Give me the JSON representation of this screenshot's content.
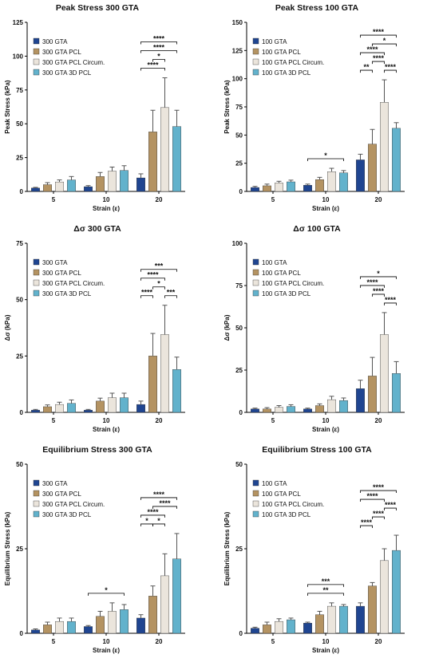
{
  "colors": {
    "c1": "#1f4591",
    "c2": "#b49362",
    "c3": "#ebe5dc",
    "c4": "#62b2cc"
  },
  "charts": [
    {
      "title": "Peak Stress 300 GTA",
      "ylabel": "Peak Stress (kPa)",
      "xlabel": "Strain (ε)",
      "categories": [
        "5",
        "10",
        "20"
      ],
      "ylim": [
        0,
        125
      ],
      "yticks": [
        "0",
        "25",
        "50",
        "75",
        "100",
        "125"
      ],
      "legend": [
        "300 GTA",
        "300 GTA PCL",
        "300 GTA PCL Circum.",
        "300 GTA 3D PCL"
      ],
      "series": [
        {
          "name": "300 GTA",
          "values": [
            2.5,
            3.5,
            10
          ],
          "errors": [
            0.5,
            0.8,
            3
          ]
        },
        {
          "name": "300 GTA PCL",
          "values": [
            5,
            11,
            44
          ],
          "errors": [
            1.5,
            3,
            16
          ]
        },
        {
          "name": "300 GTA PCL Circum.",
          "values": [
            7,
            15,
            62
          ],
          "errors": [
            1.5,
            3,
            22
          ]
        },
        {
          "name": "300 GTA 3D PCL",
          "values": [
            8.5,
            15.5,
            48
          ],
          "errors": [
            2.5,
            3.5,
            12
          ]
        }
      ],
      "annotations": [
        {
          "label": "****",
          "cat": 2,
          "from": 0,
          "to": 2,
          "level": 0
        },
        {
          "label": "*",
          "cat": 2,
          "from": 1,
          "to": 2,
          "level": 1
        },
        {
          "label": "****",
          "cat": 2,
          "from": 0,
          "to": 3,
          "level": 2
        },
        {
          "label": "****",
          "cat": 2,
          "from": 0,
          "to": 3,
          "level": 3
        }
      ]
    },
    {
      "title": "Peak Stress 100 GTA",
      "ylabel": "Peak Stress (kPa)",
      "xlabel": "Strain (ε)",
      "categories": [
        "5",
        "10",
        "20"
      ],
      "ylim": [
        0,
        150
      ],
      "yticks": [
        "0",
        "25",
        "50",
        "75",
        "100",
        "125",
        "150"
      ],
      "legend": [
        "100 GTA",
        "100 GTA PCL",
        "100 GTA PCL Circum.",
        "100 GTA 3D PCL"
      ],
      "series": [
        {
          "name": "100 GTA",
          "values": [
            3.5,
            5.5,
            28
          ],
          "errors": [
            1,
            1,
            5
          ]
        },
        {
          "name": "100 GTA PCL",
          "values": [
            5,
            10.5,
            42
          ],
          "errors": [
            1.5,
            2,
            13
          ]
        },
        {
          "name": "100 GTA PCL Circum.",
          "values": [
            7.5,
            17.5,
            79
          ],
          "errors": [
            1.5,
            3,
            20
          ]
        },
        {
          "name": "100 GTA 3D PCL",
          "values": [
            8.5,
            16.5,
            56
          ],
          "errors": [
            1.5,
            2,
            5
          ]
        }
      ],
      "annotations": [
        {
          "label": "**",
          "cat": 2,
          "from": 0,
          "to": 1,
          "level": 0
        },
        {
          "label": "****",
          "cat": 2,
          "from": 2,
          "to": 3,
          "level": 0
        },
        {
          "label": "****",
          "cat": 2,
          "from": 1,
          "to": 2,
          "level": 1
        },
        {
          "label": "****",
          "cat": 2,
          "from": 0,
          "to": 2,
          "level": 2
        },
        {
          "label": "*",
          "cat": 2,
          "from": 1,
          "to": 3,
          "level": 3
        },
        {
          "label": "****",
          "cat": 2,
          "from": 0,
          "to": 3,
          "level": 4
        },
        {
          "label": "*",
          "cat": 1,
          "from": 0,
          "to": 3,
          "level": 0
        }
      ]
    },
    {
      "title": "Δσ 300 GTA",
      "ylabel": "Δσ (kPa)",
      "xlabel": "Strain (ε)",
      "categories": [
        "5",
        "10",
        "20"
      ],
      "ylim": [
        0,
        75
      ],
      "yticks": [
        "0",
        "25",
        "50",
        "75"
      ],
      "legend": [
        "300 GTA",
        "300 GTA PCL",
        "300 GTA PCL Circum.",
        "300 GTA 3D PCL"
      ],
      "series": [
        {
          "name": "300 GTA",
          "values": [
            1,
            1,
            3.5
          ],
          "errors": [
            0.3,
            0.3,
            1.5
          ]
        },
        {
          "name": "300 GTA PCL",
          "values": [
            2.5,
            5,
            25
          ],
          "errors": [
            0.8,
            1.3,
            10
          ]
        },
        {
          "name": "300 GTA PCL Circum.",
          "values": [
            3.5,
            6.5,
            34.5
          ],
          "errors": [
            1,
            2,
            13
          ]
        },
        {
          "name": "300 GTA 3D PCL",
          "values": [
            4,
            6.5,
            19
          ],
          "errors": [
            1.5,
            2,
            5.5
          ]
        }
      ],
      "annotations": [
        {
          "label": "****",
          "cat": 2,
          "from": 0,
          "to": 1,
          "level": 0
        },
        {
          "label": "***",
          "cat": 2,
          "from": 2,
          "to": 3,
          "level": 0
        },
        {
          "label": "*",
          "cat": 2,
          "from": 1,
          "to": 2,
          "level": 1
        },
        {
          "label": "****",
          "cat": 2,
          "from": 0,
          "to": 2,
          "level": 2
        },
        {
          "label": "***",
          "cat": 2,
          "from": 0,
          "to": 3,
          "level": 3
        }
      ]
    },
    {
      "title": "Δσ 100 GTA",
      "ylabel": "Δσ (kPa)",
      "xlabel": "Strain (ε)",
      "categories": [
        "5",
        "10",
        "20"
      ],
      "ylim": [
        0,
        100
      ],
      "yticks": [
        "0",
        "25",
        "50",
        "75",
        "100"
      ],
      "legend": [
        "100 GTA",
        "100 GTA PCL",
        "100 GTA PCL Circum.",
        "100 GTA 3D PCL"
      ],
      "series": [
        {
          "name": "100 GTA",
          "values": [
            2,
            2,
            14
          ],
          "errors": [
            0.5,
            0.5,
            5
          ]
        },
        {
          "name": "100 GTA PCL",
          "values": [
            2,
            4,
            21.5
          ],
          "errors": [
            0.8,
            1,
            11
          ]
        },
        {
          "name": "100 GTA PCL Circum.",
          "values": [
            3,
            7.5,
            46
          ],
          "errors": [
            1,
            2,
            13
          ]
        },
        {
          "name": "100 GTA 3D PCL",
          "values": [
            3.5,
            7,
            23
          ],
          "errors": [
            1,
            1.5,
            7
          ]
        }
      ],
      "annotations": [
        {
          "label": "****",
          "cat": 2,
          "from": 2,
          "to": 3,
          "level": 0
        },
        {
          "label": "****",
          "cat": 2,
          "from": 1,
          "to": 2,
          "level": 1
        },
        {
          "label": "****",
          "cat": 2,
          "from": 0,
          "to": 2,
          "level": 2
        },
        {
          "label": "*",
          "cat": 2,
          "from": 0,
          "to": 3,
          "level": 3
        }
      ]
    },
    {
      "title": "Equilibrium Stress 300 GTA",
      "ylabel": "Equilibrium Stress (kPa)",
      "xlabel": "Strain (ε)",
      "categories": [
        "5",
        "10",
        "20"
      ],
      "ylim": [
        0,
        50
      ],
      "yticks": [
        "0",
        "25",
        "50"
      ],
      "legend": [
        "300 GTA",
        "300 GTA PCL",
        "300 GTA PCL Circum.",
        "300 GTA 3D PCL"
      ],
      "series": [
        {
          "name": "300 GTA",
          "values": [
            1,
            2,
            4.5
          ],
          "errors": [
            0.3,
            0.3,
            1
          ]
        },
        {
          "name": "300 GTA PCL",
          "values": [
            2.5,
            5,
            11
          ],
          "errors": [
            0.8,
            1.5,
            3
          ]
        },
        {
          "name": "300 GTA PCL Circum.",
          "values": [
            3.5,
            6.5,
            17
          ],
          "errors": [
            1,
            2.5,
            6.5
          ]
        },
        {
          "name": "300 GTA 3D PCL",
          "values": [
            3.5,
            7,
            22
          ],
          "errors": [
            1,
            1.5,
            7.5
          ]
        }
      ],
      "annotations": [
        {
          "label": "*",
          "cat": 2,
          "from": 0,
          "to": 1,
          "level": 0
        },
        {
          "label": "*",
          "cat": 2,
          "from": 1,
          "to": 2,
          "level": 0
        },
        {
          "label": "****",
          "cat": 2,
          "from": 0,
          "to": 2,
          "level": 1
        },
        {
          "label": "****",
          "cat": 2,
          "from": 1,
          "to": 3,
          "level": 2
        },
        {
          "label": "****",
          "cat": 2,
          "from": 0,
          "to": 3,
          "level": 3
        },
        {
          "label": "*",
          "cat": 1,
          "from": 0,
          "to": 3,
          "level": 0
        }
      ]
    },
    {
      "title": "Equilibrium Stress 100 GTA",
      "ylabel": "Equilibrium Stress (kPa)",
      "xlabel": "Strain (ε)",
      "categories": [
        "5",
        "10",
        "20"
      ],
      "ylim": [
        0,
        50
      ],
      "yticks": [
        "0",
        "25",
        "50"
      ],
      "legend": [
        "100 GTA",
        "100 GTA PCL",
        "100 GTA PCL Circum.",
        "100 GTA 3D PCL"
      ],
      "series": [
        {
          "name": "100 GTA",
          "values": [
            1.5,
            3,
            8
          ],
          "errors": [
            0.3,
            0.3,
            1
          ]
        },
        {
          "name": "100 GTA PCL",
          "values": [
            2.5,
            5.5,
            14
          ],
          "errors": [
            0.8,
            1,
            1
          ]
        },
        {
          "name": "100 GTA PCL Circum.",
          "values": [
            3.5,
            8,
            21.5
          ],
          "errors": [
            0.8,
            1,
            3.5
          ]
        },
        {
          "name": "100 GTA 3D PCL",
          "values": [
            4,
            8,
            24.5
          ],
          "errors": [
            0.5,
            0.5,
            4.5
          ]
        }
      ],
      "annotations": [
        {
          "label": "****",
          "cat": 2,
          "from": 0,
          "to": 1,
          "level": 0
        },
        {
          "label": "****",
          "cat": 2,
          "from": 1,
          "to": 2,
          "level": 1
        },
        {
          "label": "****",
          "cat": 2,
          "from": 2,
          "to": 3,
          "level": 2
        },
        {
          "label": "****",
          "cat": 2,
          "from": 0,
          "to": 2,
          "level": 3
        },
        {
          "label": "****",
          "cat": 2,
          "from": 0,
          "to": 3,
          "level": 4
        },
        {
          "label": "**",
          "cat": 1,
          "from": 0,
          "to": 3,
          "level": 0
        },
        {
          "label": "***",
          "cat": 1,
          "from": 0,
          "to": 3,
          "level": 1
        }
      ]
    }
  ]
}
